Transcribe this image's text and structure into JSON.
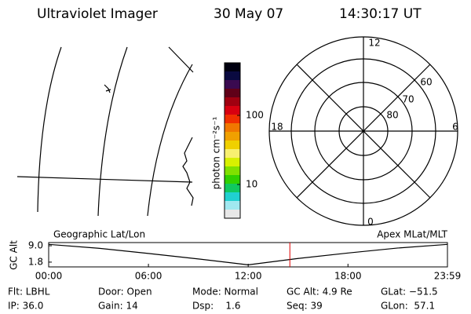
{
  "header": {
    "title": "Ultraviolet Imager",
    "date": "30 May 07",
    "time": "14:30:17 UT"
  },
  "colorbar": {
    "label": "photon cm⁻²s⁻¹",
    "ticks": [
      "100",
      "10"
    ]
  },
  "polar": {
    "top": "12",
    "left": "18",
    "right": "6",
    "bottom": "0",
    "rings": [
      "60",
      "70",
      "80"
    ]
  },
  "altitude_plot": {
    "left_title": "Geographic Lat/Lon",
    "right_title": "Apex MLat/MLT",
    "ylabel": "GC Alt",
    "xlim": [
      0,
      23.983
    ],
    "ylim": [
      -0.3,
      10.4
    ],
    "xticks": [
      {
        "value": 0,
        "label": "00:00"
      },
      {
        "value": 6,
        "label": "06:00"
      },
      {
        "value": 12,
        "label": "12:00"
      },
      {
        "value": 18,
        "label": "18:00"
      },
      {
        "value": 23.983,
        "label": "23:59"
      }
    ],
    "yticks": [
      {
        "value": 9,
        "label": "9.0"
      },
      1.8
    ],
    "x": [
      0,
      3,
      6,
      9,
      12,
      15,
      18,
      21,
      23.983
    ],
    "values": [
      9.6,
      7.9,
      5.6,
      3.2,
      0.6,
      3.4,
      5.8,
      8.0,
      9.6
    ],
    "marker": 14.505
  },
  "status": [
    [
      "Flt: LBHL",
      "Door: Open",
      "Mode: Normal",
      "GC Alt: 4.9 Re",
      "GLat: −51.5"
    ],
    [
      "IP: 36.0",
      "Gain: 14",
      "Dsp:    1.6",
      "Seq: 39",
      "GLon:  57.1"
    ]
  ]
}
